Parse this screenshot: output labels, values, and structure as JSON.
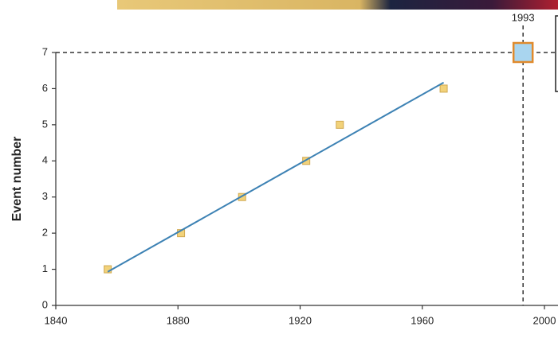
{
  "chart_data": {
    "type": "scatter",
    "y_label": "Event number",
    "xlim": [
      1840,
      2000
    ],
    "ylim": [
      0,
      7
    ],
    "xticks": [
      1840,
      1880,
      1920,
      1960,
      2000
    ],
    "yticks": [
      0,
      1,
      2,
      3,
      4,
      5,
      6,
      7
    ],
    "series": [
      {
        "style": "points",
        "color": "#f2d27a",
        "x": [
          1857,
          1881,
          1901,
          1922,
          1933,
          1967
        ],
        "values": [
          1,
          2,
          3,
          4,
          5,
          6
        ]
      },
      {
        "style": "line",
        "color": "#3d82b4",
        "x": [
          1857,
          1967
        ],
        "values": [
          0.93,
          6.17
        ]
      },
      {
        "style": "highlight",
        "color": "#a9d5ef",
        "x": [
          1993
        ],
        "values": [
          7
        ]
      }
    ]
  }
}
